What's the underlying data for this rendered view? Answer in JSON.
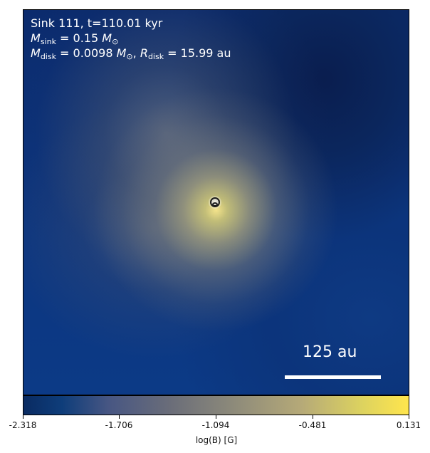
{
  "panel": {
    "sink_label": "Sink 111, t=110.01 kyr",
    "sink_mass_symbol": "M",
    "sink_mass_subscript": "sink",
    "sink_mass_value": " = 0.15 ",
    "sink_mass_unit_symbol": "M",
    "sink_mass_unit_subscript": "⊙",
    "disk_mass_symbol": "M",
    "disk_mass_subscript": "disk",
    "disk_mass_value": " = 0.0098 ",
    "disk_mass_unit_symbol": "M",
    "disk_mass_unit_subscript": "⊙",
    "radius_symbol": "R",
    "radius_subscript": "disk",
    "radius_value": " = 15.99 au",
    "comma": ", ",
    "scale_label": "125 au"
  },
  "colorbar": {
    "ticks": [
      "-2.318",
      "-1.706",
      "-1.094",
      "-0.481",
      "0.131"
    ],
    "label": "log(B) [G]"
  },
  "colors": {
    "text": "#ffffff",
    "bar_dark": "#0a2b62",
    "bar_mid": "#6a6d79",
    "bar_light": "#ffe54d"
  }
}
